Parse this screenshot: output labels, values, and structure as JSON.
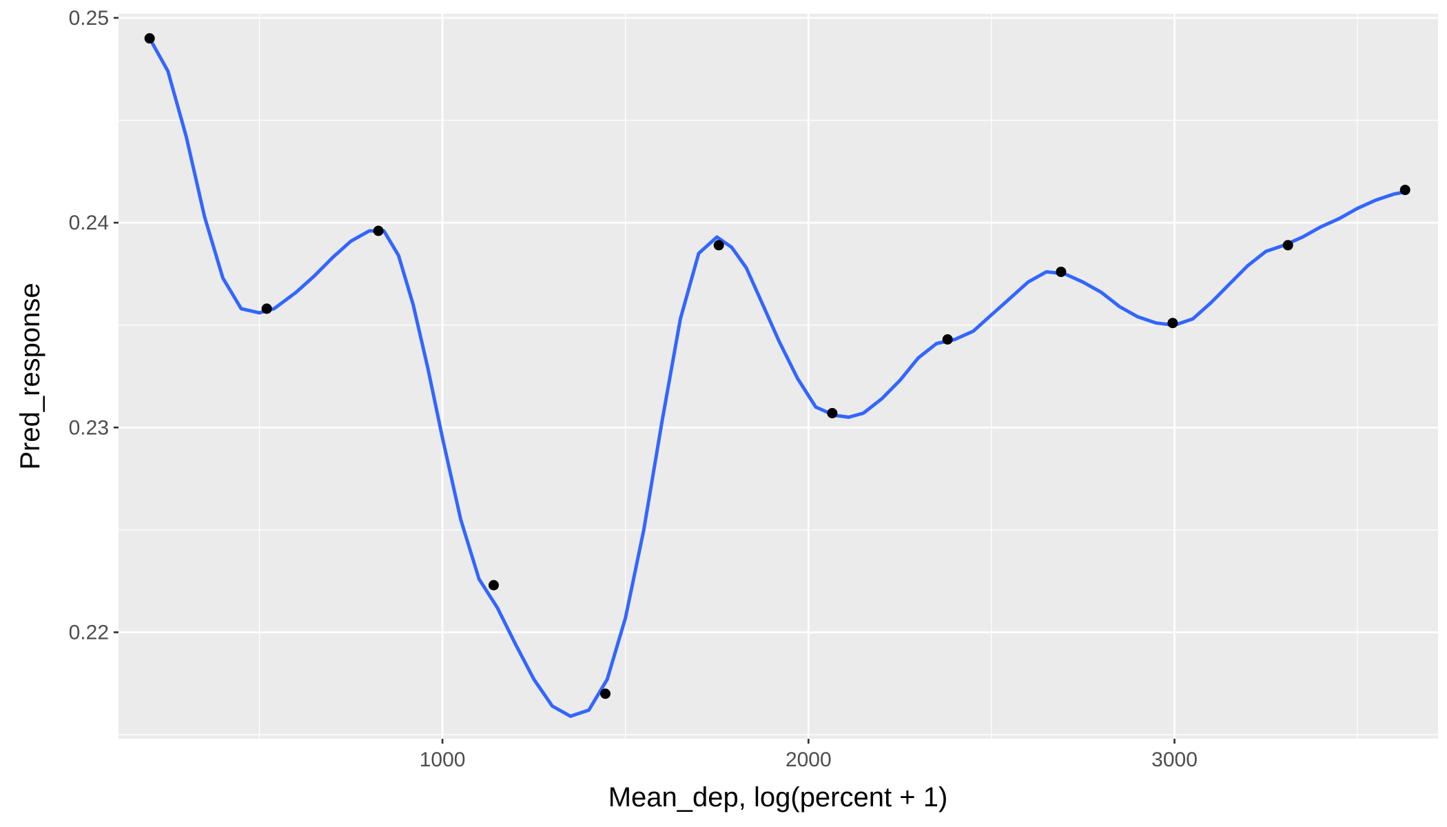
{
  "chart_data": {
    "type": "line",
    "title": "",
    "xlabel": "Mean_dep, log(percent + 1)",
    "ylabel": "Pred_response",
    "xlim": [
      115,
      3720
    ],
    "ylim": [
      0.2148,
      0.2502
    ],
    "x_ticks": [
      1000,
      2000,
      3000
    ],
    "x_tick_labels": [
      "1000",
      "2000",
      "3000"
    ],
    "y_ticks": [
      0.22,
      0.23,
      0.24,
      0.25
    ],
    "y_tick_labels": [
      "0.22",
      "0.23",
      "0.24",
      "0.25"
    ],
    "grid": true,
    "series": [
      {
        "mark": "line",
        "color": "#3366FF",
        "x": [
          200,
          250,
          300,
          350,
          400,
          450,
          500,
          540,
          600,
          650,
          700,
          750,
          800,
          840,
          880,
          920,
          960,
          1000,
          1050,
          1100,
          1150,
          1200,
          1250,
          1300,
          1350,
          1400,
          1450,
          1500,
          1550,
          1600,
          1650,
          1700,
          1750,
          1790,
          1830,
          1870,
          1920,
          1970,
          2020,
          2070,
          2110,
          2150,
          2200,
          2250,
          2300,
          2350,
          2400,
          2450,
          2500,
          2550,
          2600,
          2650,
          2700,
          2750,
          2800,
          2850,
          2900,
          2950,
          3000,
          3050,
          3100,
          3150,
          3200,
          3250,
          3300,
          3350,
          3400,
          3450,
          3500,
          3550,
          3600,
          3630
        ],
        "y": [
          0.249,
          0.2474,
          0.2442,
          0.2403,
          0.2373,
          0.2358,
          0.2356,
          0.2358,
          0.2366,
          0.2374,
          0.2383,
          0.2391,
          0.2396,
          0.2396,
          0.2384,
          0.236,
          0.2329,
          0.2295,
          0.2255,
          0.2226,
          0.2212,
          0.2194,
          0.2177,
          0.2164,
          0.2159,
          0.2162,
          0.2177,
          0.2207,
          0.225,
          0.2303,
          0.2353,
          0.2385,
          0.2393,
          0.2388,
          0.2378,
          0.2362,
          0.2342,
          0.2324,
          0.231,
          0.2306,
          0.2305,
          0.2307,
          0.2314,
          0.2323,
          0.2334,
          0.2341,
          0.2343,
          0.2347,
          0.2355,
          0.2363,
          0.2371,
          0.2376,
          0.2375,
          0.2371,
          0.2366,
          0.2359,
          0.2354,
          0.2351,
          0.235,
          0.2353,
          0.2361,
          0.237,
          0.2379,
          0.2386,
          0.2389,
          0.2393,
          0.2398,
          0.2402,
          0.2407,
          0.2411,
          0.2414,
          0.2415
        ]
      },
      {
        "mark": "points",
        "color": "#000000",
        "x": [
          200,
          520,
          825,
          1140,
          1445,
          1755,
          2065,
          2380,
          2690,
          2995,
          3310,
          3630
        ],
        "y": [
          0.249,
          0.2358,
          0.2396,
          0.2223,
          0.217,
          0.2389,
          0.2307,
          0.2343,
          0.2376,
          0.2351,
          0.2389,
          0.2416
        ]
      }
    ]
  }
}
